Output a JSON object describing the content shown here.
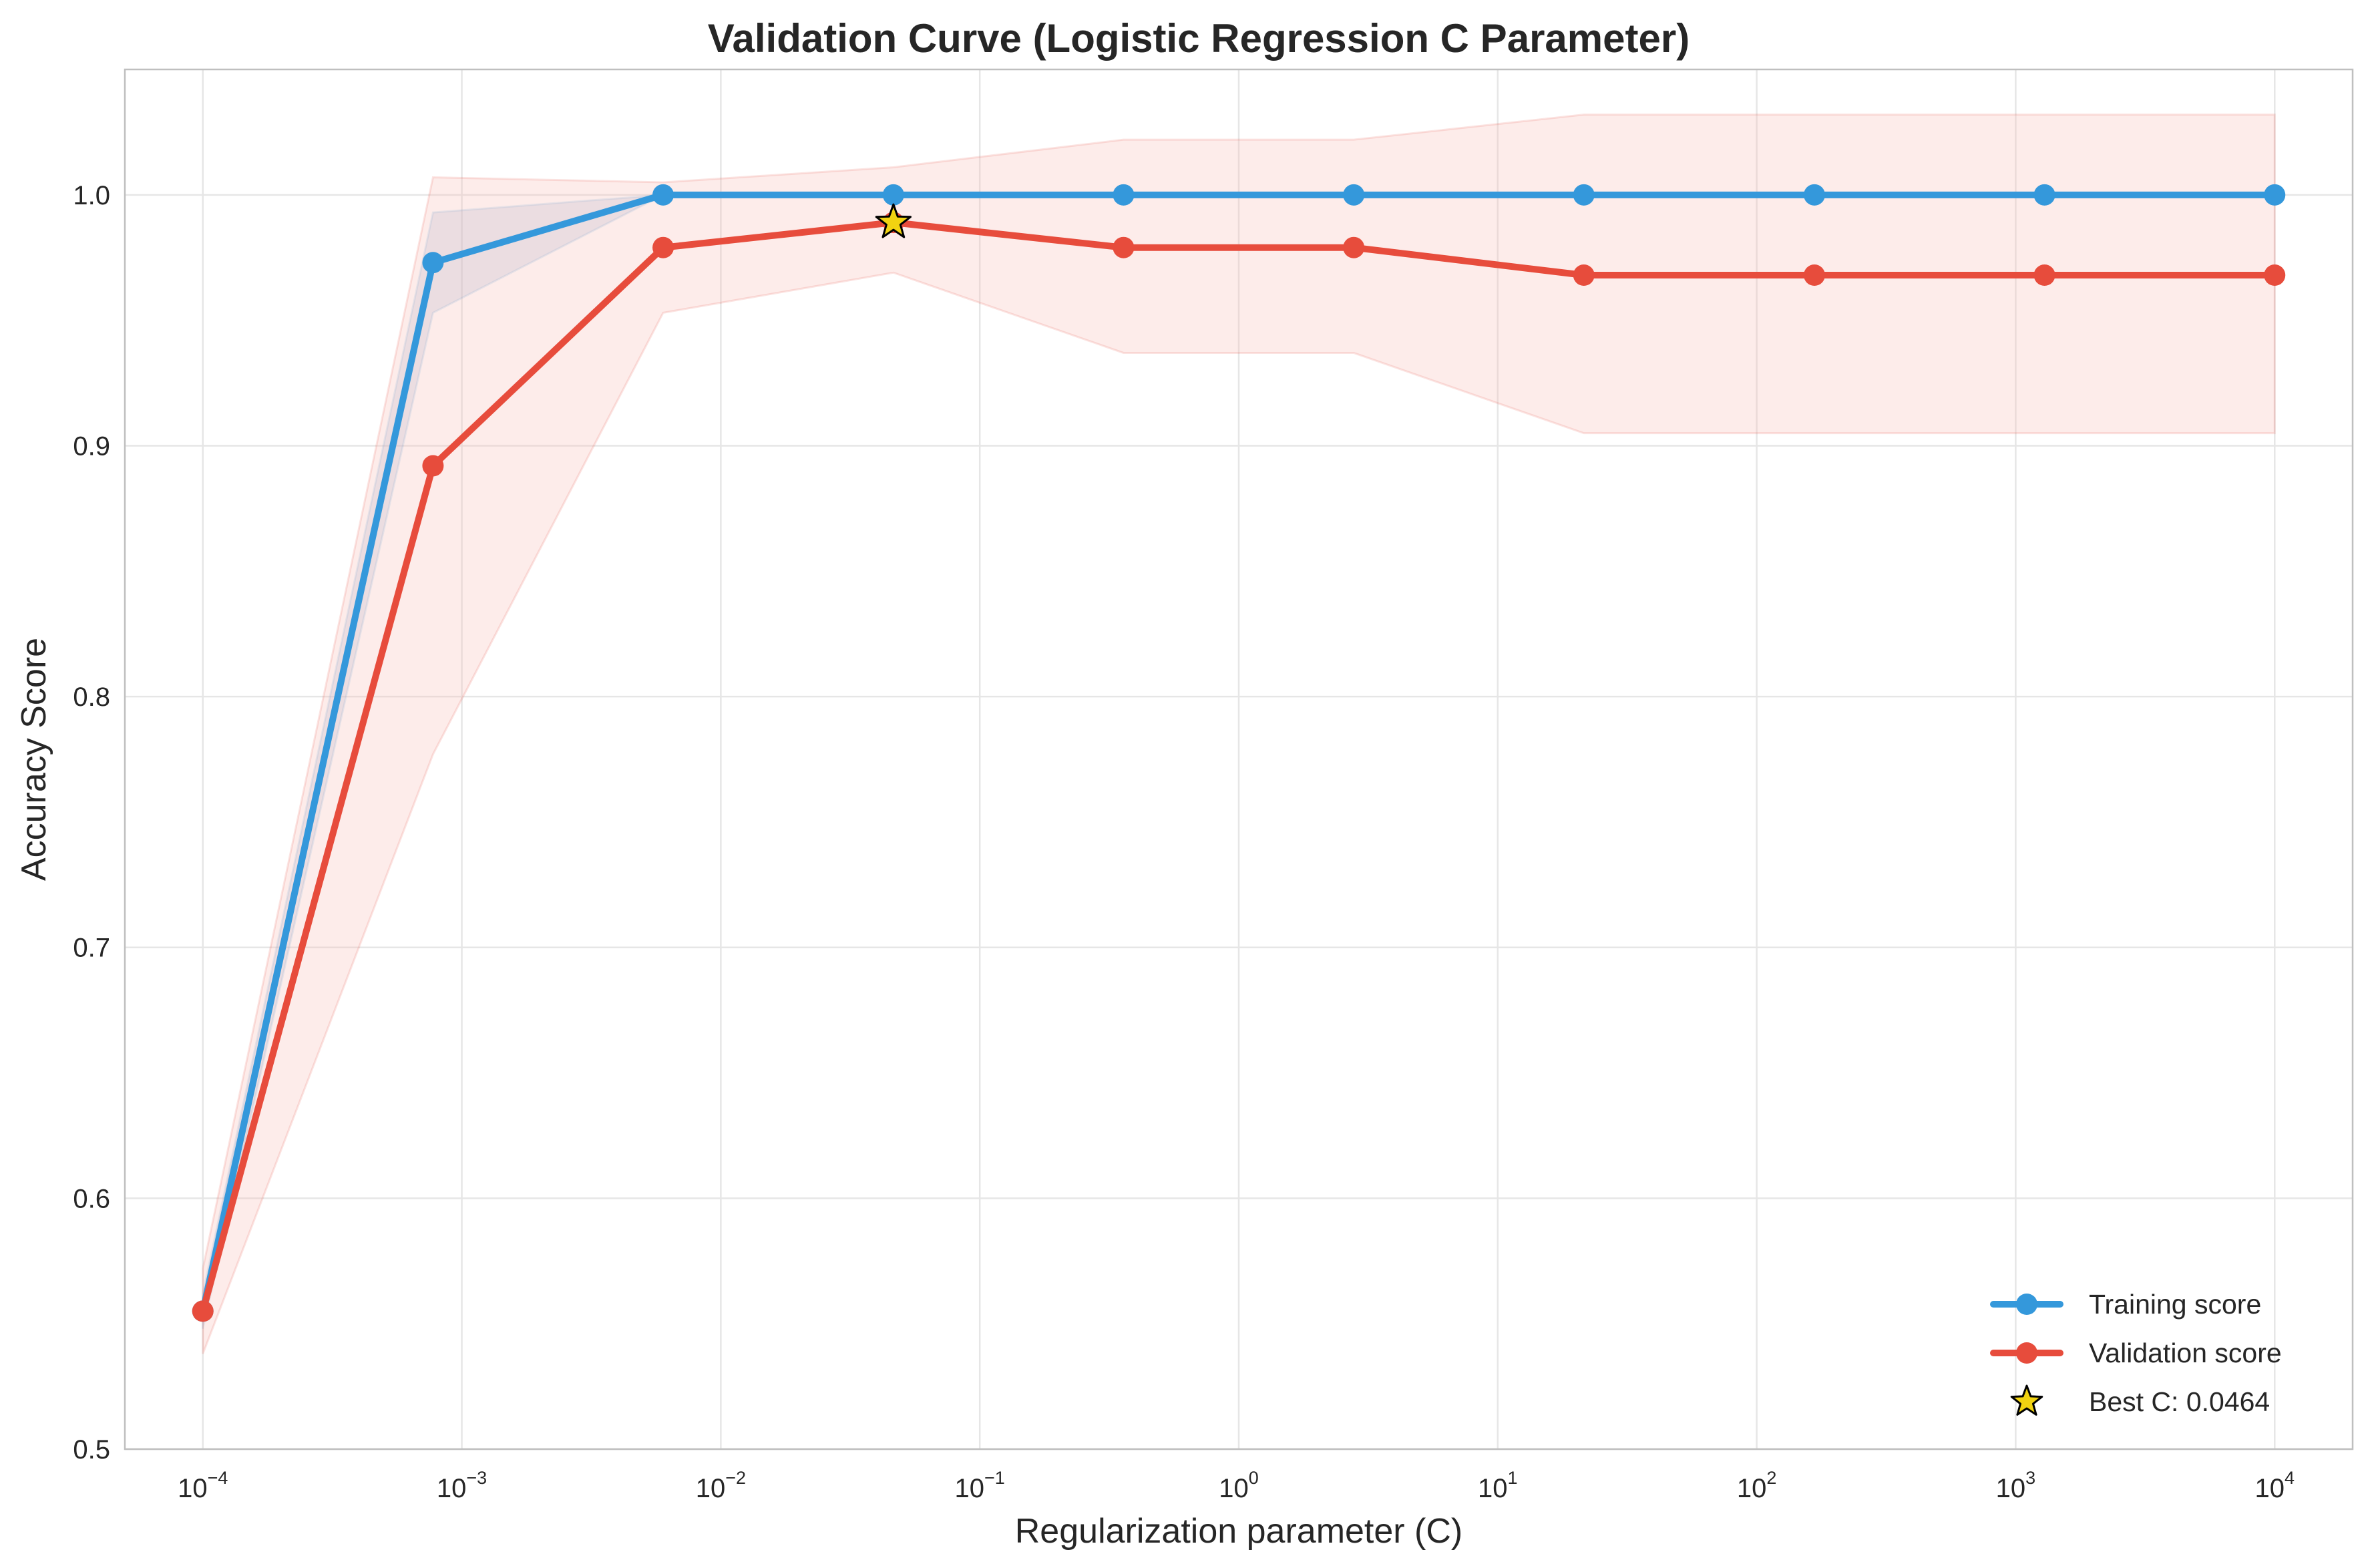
{
  "chart_data": {
    "type": "line",
    "title": "Validation Curve (Logistic Regression C Parameter)",
    "xlabel": "Regularization parameter (C)",
    "ylabel": "Accuracy Score",
    "xscale": "log",
    "xlim": [
      5e-05,
      20000
    ],
    "ylim": [
      0.5,
      1.05
    ],
    "grid": true,
    "legend_placement": "lower-right",
    "x_ticks": [
      {
        "base": "10",
        "exp": "−4",
        "value": 0.0001
      },
      {
        "base": "10",
        "exp": "−3",
        "value": 0.001
      },
      {
        "base": "10",
        "exp": "−2",
        "value": 0.01
      },
      {
        "base": "10",
        "exp": "−1",
        "value": 0.1
      },
      {
        "base": "10",
        "exp": "0",
        "value": 1
      },
      {
        "base": "10",
        "exp": "1",
        "value": 10
      },
      {
        "base": "10",
        "exp": "2",
        "value": 100
      },
      {
        "base": "10",
        "exp": "3",
        "value": 1000
      },
      {
        "base": "10",
        "exp": "4",
        "value": 10000
      }
    ],
    "y_ticks": [
      {
        "label": "0.5",
        "value": 0.5
      },
      {
        "label": "0.6",
        "value": 0.6
      },
      {
        "label": "0.7",
        "value": 0.7
      },
      {
        "label": "0.8",
        "value": 0.8
      },
      {
        "label": "0.9",
        "value": 0.9
      },
      {
        "label": "1.0",
        "value": 1.0
      }
    ],
    "x": [
      0.0001,
      0.000774,
      0.00599,
      0.0464,
      0.359,
      2.78,
      21.5,
      167,
      1292,
      10000
    ],
    "series": [
      {
        "name": "Training score",
        "color": "#3498db",
        "values": [
          0.555,
          0.973,
          1.0,
          1.0,
          1.0,
          1.0,
          1.0,
          1.0,
          1.0,
          1.0
        ],
        "band_lower": [
          0.548,
          0.953,
          1.0,
          1.0,
          1.0,
          1.0,
          1.0,
          1.0,
          1.0,
          1.0
        ],
        "band_upper": [
          0.562,
          0.993,
          1.0,
          1.0,
          1.0,
          1.0,
          1.0,
          1.0,
          1.0,
          1.0
        ]
      },
      {
        "name": "Validation score",
        "color": "#e74c3c",
        "values": [
          0.555,
          0.892,
          0.979,
          0.989,
          0.979,
          0.979,
          0.968,
          0.968,
          0.968,
          0.968
        ],
        "band_lower": [
          0.538,
          0.777,
          0.953,
          0.969,
          0.937,
          0.937,
          0.905,
          0.905,
          0.905,
          0.905
        ],
        "band_upper": [
          0.572,
          1.007,
          1.005,
          1.011,
          1.022,
          1.022,
          1.032,
          1.032,
          1.032,
          1.032
        ]
      }
    ],
    "best_point": {
      "label": "Best C: 0.0464",
      "x": 0.0464,
      "y": 0.989,
      "color": "#f1d311"
    }
  }
}
